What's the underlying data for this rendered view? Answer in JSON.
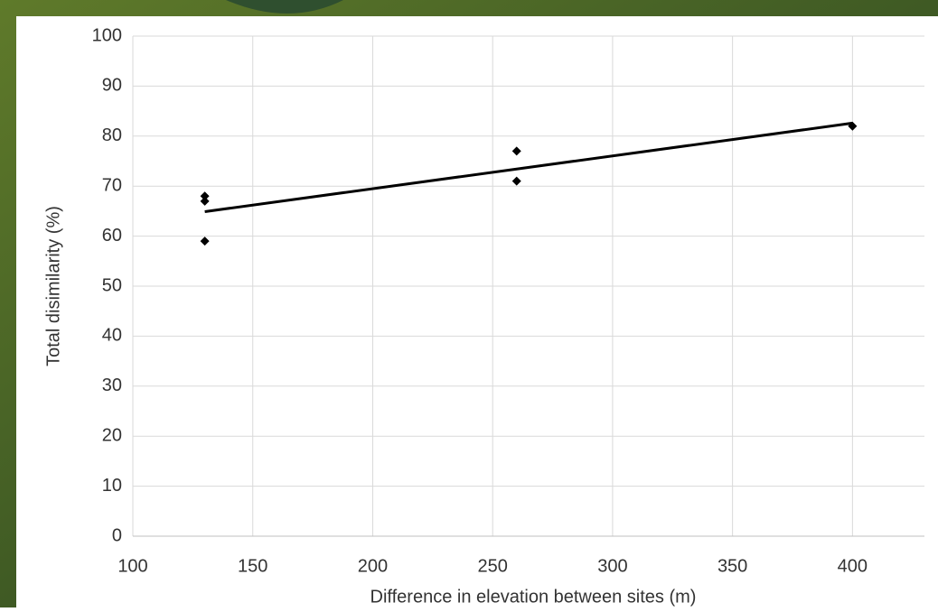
{
  "chart_data": {
    "type": "scatter",
    "xlabel": "Difference in elevation between sites (m)",
    "ylabel": "Total disimilarity (%)",
    "x": [
      130,
      130,
      130,
      260,
      260,
      400
    ],
    "values": [
      68,
      67,
      59,
      77,
      71,
      82
    ],
    "color": "#000000",
    "trendline": {
      "x": [
        130,
        400
      ],
      "values": [
        64.9,
        82.6
      ],
      "color": "#000000"
    },
    "xlim": [
      100,
      430
    ],
    "xticks": [
      100,
      150,
      200,
      250,
      300,
      350,
      400
    ],
    "ylim": [
      0,
      100
    ],
    "yticks": [
      0,
      10,
      20,
      30,
      40,
      50,
      60,
      70,
      80,
      90,
      100
    ],
    "grid": true
  }
}
